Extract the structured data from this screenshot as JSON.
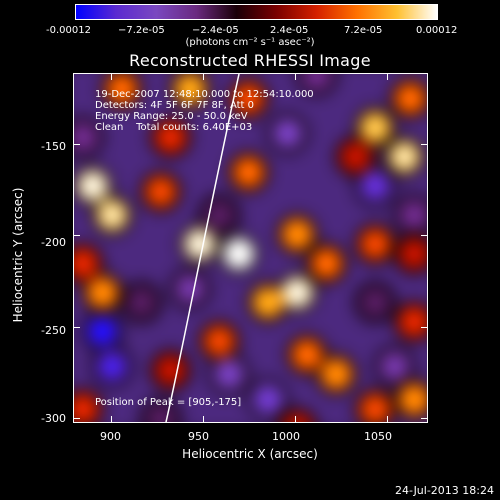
{
  "colorbar": {
    "tick_labels": [
      "-0.00012",
      "−7.2e-05",
      "−2.4e-05",
      "2.4e-05",
      "7.2e-05",
      "0.00012"
    ],
    "units": "(photons cm⁻² s⁻¹ asec⁻²)",
    "colors": [
      "#0000ff",
      "#5a2ad0",
      "#7a48c0",
      "#6a2a80",
      "#1a0008",
      "#7a0000",
      "#d42000",
      "#ff7000",
      "#ffc030",
      "#ffffff"
    ]
  },
  "chart_data": {
    "type": "heatmap",
    "title": "Reconstructed RHESSI Image",
    "xlabel": "Heliocentric X (arcsec)",
    "ylabel": "Heliocentric Y (arcsec)",
    "xlim": [
      880,
      1072
    ],
    "ylim": [
      -302,
      -112
    ],
    "x_ticks": [
      900,
      950,
      1000,
      1050
    ],
    "y_ticks": [
      -150,
      -200,
      -250,
      -300
    ],
    "colorbar_range": [
      -0.00012,
      0.00012
    ],
    "peak_position": [
      905,
      -175
    ],
    "annotation_lines": [
      "19-Dec-2007 12:48:10.000 to 12:54:10.000",
      "Detectors: 4F 5F 6F 7F 8F, Att 0",
      "Energy Range: 25.0 - 50.0 keV",
      "Clean    Total counts: 6.40E+03"
    ],
    "peak_label": "Position of Peak = [905,-175]",
    "blobs": [
      {
        "x": 910,
        "y": -125,
        "v": 6e-05
      },
      {
        "x": 945,
        "y": -125,
        "v": 8e-05
      },
      {
        "x": 975,
        "y": -130,
        "v": 5e-05
      },
      {
        "x": 1010,
        "y": -118,
        "v": -4e-05
      },
      {
        "x": 1040,
        "y": -145,
        "v": 9e-05
      },
      {
        "x": 1058,
        "y": -130,
        "v": 6e-05
      },
      {
        "x": 1055,
        "y": -160,
        "v": 0.0001
      },
      {
        "x": 995,
        "y": -148,
        "v": -6e-05
      },
      {
        "x": 1040,
        "y": -175,
        "v": -8e-05
      },
      {
        "x": 975,
        "y": -168,
        "v": 6e-05
      },
      {
        "x": 1030,
        "y": -160,
        "v": 3e-05
      },
      {
        "x": 895,
        "y": -175,
        "v": 0.00011
      },
      {
        "x": 905,
        "y": -190,
        "v": 0.0001
      },
      {
        "x": 935,
        "y": -150,
        "v": 4e-05
      },
      {
        "x": 930,
        "y": -178,
        "v": 5e-05
      },
      {
        "x": 890,
        "y": -150,
        "v": -4e-05
      },
      {
        "x": 950,
        "y": -205,
        "v": 0.00011
      },
      {
        "x": 970,
        "y": -210,
        "v": 0.00012
      },
      {
        "x": 960,
        "y": -190,
        "v": -3e-05
      },
      {
        "x": 1000,
        "y": -200,
        "v": 7e-05
      },
      {
        "x": 1015,
        "y": -215,
        "v": 6e-05
      },
      {
        "x": 1040,
        "y": -205,
        "v": 5e-05
      },
      {
        "x": 1060,
        "y": -210,
        "v": 3e-05
      },
      {
        "x": 985,
        "y": -235,
        "v": 8e-05
      },
      {
        "x": 1000,
        "y": -230,
        "v": 0.00011
      },
      {
        "x": 1040,
        "y": -235,
        "v": -3e-05
      },
      {
        "x": 1060,
        "y": -245,
        "v": 4e-05
      },
      {
        "x": 900,
        "y": -230,
        "v": 7e-05
      },
      {
        "x": 890,
        "y": -215,
        "v": 4e-05
      },
      {
        "x": 920,
        "y": -235,
        "v": -3e-05
      },
      {
        "x": 945,
        "y": -228,
        "v": -5e-05
      },
      {
        "x": 900,
        "y": -250,
        "v": -0.0001
      },
      {
        "x": 905,
        "y": -268,
        "v": -9e-05
      },
      {
        "x": 960,
        "y": -255,
        "v": 5e-05
      },
      {
        "x": 965,
        "y": -272,
        "v": -6e-05
      },
      {
        "x": 1005,
        "y": -262,
        "v": 6e-05
      },
      {
        "x": 1020,
        "y": -272,
        "v": 7e-05
      },
      {
        "x": 1050,
        "y": -268,
        "v": -5e-05
      },
      {
        "x": 985,
        "y": -285,
        "v": -7e-05
      },
      {
        "x": 1040,
        "y": -290,
        "v": 5e-05
      },
      {
        "x": 1060,
        "y": -285,
        "v": 7e-05
      },
      {
        "x": 890,
        "y": -290,
        "v": 4e-05
      },
      {
        "x": 930,
        "y": -295,
        "v": -3e-05
      },
      {
        "x": 1000,
        "y": -300,
        "v": 3e-05
      },
      {
        "x": 935,
        "y": -270,
        "v": 3e-05
      },
      {
        "x": 1060,
        "y": -190,
        "v": -4e-05
      }
    ]
  },
  "footer": {
    "timestamp": "24-Jul-2013 18:24"
  }
}
